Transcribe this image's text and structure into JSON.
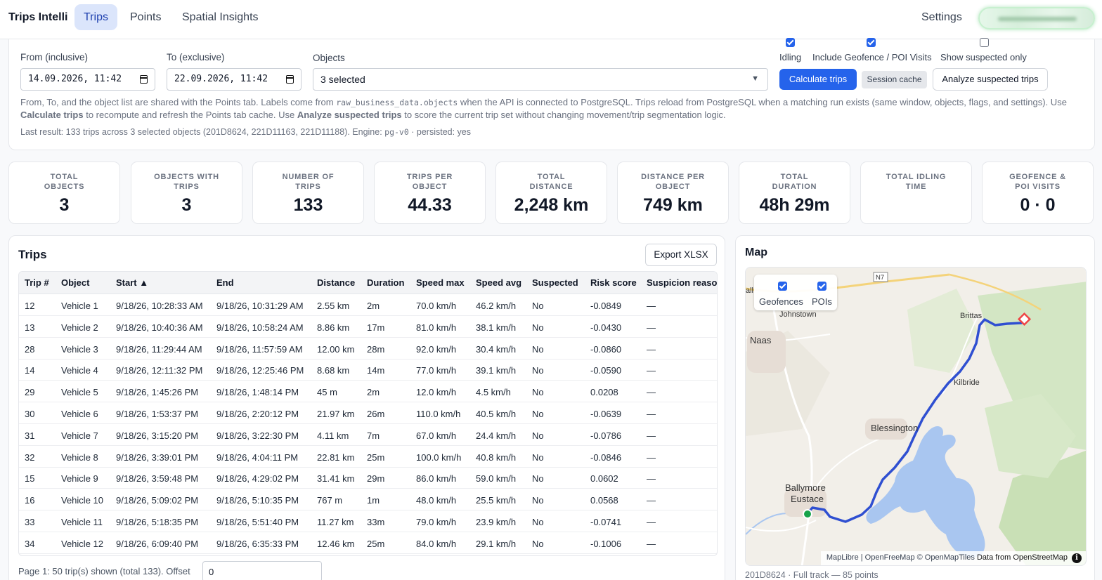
{
  "app": {
    "brand": "Trips Intelli"
  },
  "nav": {
    "tabs": [
      {
        "label": "Trips",
        "active": true
      },
      {
        "label": "Points",
        "active": false
      },
      {
        "label": "Spatial Insights",
        "active": false
      }
    ],
    "settings_label": "Settings"
  },
  "filters": {
    "from_label": "From (inclusive)",
    "from_value": "14.09.2026, 11:42",
    "to_label": "To (exclusive)",
    "to_value": "22.09.2026, 11:42",
    "objects_label": "Objects",
    "objects_value": "3 selected",
    "options": [
      {
        "label": "Idling",
        "checked": true
      },
      {
        "label": "Include Geofence / POI Visits",
        "checked": true
      },
      {
        "label": "Show suspected only",
        "checked": false
      }
    ],
    "calculate_label": "Calculate trips",
    "session_cache_label": "Session cache",
    "analyze_label": "Analyze suspected trips",
    "help": {
      "p1": "From, To, and the object list are shared with the Points tab. Labels come from ",
      "code": "raw_business_data.objects",
      "p2": " when the API is connected to PostgreSQL. Trips reload from PostgreSQL when a matching run exists (same window, objects, flags, and settings). Use ",
      "b1": "Calculate trips",
      "p3": " to recompute and refresh the Points tab cache. Use ",
      "b2": "Analyze suspected trips",
      "p4": " to score the current trip set without changing movement/trip segmentation logic."
    },
    "last_result": {
      "prefix": "Last result: 133 trips across 3 selected objects (201D8624, 221D11163, 221D11188). Engine: ",
      "engine": "pg-v0",
      "suffix": " · persisted: yes"
    }
  },
  "stats": [
    {
      "label_1": "TOTAL",
      "label_2": "OBJECTS",
      "value": "3"
    },
    {
      "label_1": "OBJECTS WITH",
      "label_2": "TRIPS",
      "value": "3"
    },
    {
      "label_1": "NUMBER OF",
      "label_2": "TRIPS",
      "value": "133"
    },
    {
      "label_1": "TRIPS PER",
      "label_2": "OBJECT",
      "value": "44.33"
    },
    {
      "label_1": "TOTAL",
      "label_2": "DISTANCE",
      "value": "2,248 km"
    },
    {
      "label_1": "DISTANCE PER",
      "label_2": "OBJECT",
      "value": "749 km"
    },
    {
      "label_1": "TOTAL",
      "label_2": "DURATION",
      "value": "48h 29m"
    },
    {
      "label_1": "TOTAL IDLING",
      "label_2": "TIME",
      "value": ""
    },
    {
      "label_1": "GEOFENCE &",
      "label_2": "POI VISITS",
      "value": "0 · 0"
    }
  ],
  "trips": {
    "title": "Trips",
    "export_label": "Export XLSX",
    "columns": [
      "Trip #",
      "Object",
      "Start ▲",
      "End",
      "Distance",
      "Duration",
      "Speed max",
      "Speed avg",
      "Suspected",
      "Risk score",
      "Suspicion reaso"
    ],
    "rows": [
      [
        "12",
        "Vehicle 1",
        "9/18/26, 10:28:33 AM",
        "9/18/26, 10:31:29 AM",
        "2.55 km",
        "2m",
        "70.0 km/h",
        "46.2 km/h",
        "No",
        "-0.0849",
        "—"
      ],
      [
        "13",
        "Vehicle 2",
        "9/18/26, 10:40:36 AM",
        "9/18/26, 10:58:24 AM",
        "8.86 km",
        "17m",
        "81.0 km/h",
        "38.1 km/h",
        "No",
        "-0.0430",
        "—"
      ],
      [
        "28",
        "Vehicle 3",
        "9/18/26, 11:29:44 AM",
        "9/18/26, 11:57:59 AM",
        "12.00 km",
        "28m",
        "92.0 km/h",
        "30.4 km/h",
        "No",
        "-0.0860",
        "—"
      ],
      [
        "14",
        "Vehicle 4",
        "9/18/26, 12:11:32 PM",
        "9/18/26, 12:25:46 PM",
        "8.68 km",
        "14m",
        "77.0 km/h",
        "39.1 km/h",
        "No",
        "-0.0590",
        "—"
      ],
      [
        "29",
        "Vehicle 5",
        "9/18/26, 1:45:26 PM",
        "9/18/26, 1:48:14 PM",
        "45 m",
        "2m",
        "12.0 km/h",
        "4.5 km/h",
        "No",
        "0.0208",
        "—"
      ],
      [
        "30",
        "Vehicle 6",
        "9/18/26, 1:53:37 PM",
        "9/18/26, 2:20:12 PM",
        "21.97 km",
        "26m",
        "110.0 km/h",
        "40.5 km/h",
        "No",
        "-0.0639",
        "—"
      ],
      [
        "31",
        "Vehicle 7",
        "9/18/26, 3:15:20 PM",
        "9/18/26, 3:22:30 PM",
        "4.11 km",
        "7m",
        "67.0 km/h",
        "24.4 km/h",
        "No",
        "-0.0786",
        "—"
      ],
      [
        "32",
        "Vehicle 8",
        "9/18/26, 3:39:01 PM",
        "9/18/26, 4:04:11 PM",
        "22.81 km",
        "25m",
        "100.0 km/h",
        "40.8 km/h",
        "No",
        "-0.0846",
        "—"
      ],
      [
        "15",
        "Vehicle 9",
        "9/18/26, 3:59:48 PM",
        "9/18/26, 4:29:02 PM",
        "31.41 km",
        "29m",
        "86.0 km/h",
        "59.0 km/h",
        "No",
        "0.0602",
        "—"
      ],
      [
        "16",
        "Vehicle 10",
        "9/18/26, 5:09:02 PM",
        "9/18/26, 5:10:35 PM",
        "767 m",
        "1m",
        "48.0 km/h",
        "25.5 km/h",
        "No",
        "0.0568",
        "—"
      ],
      [
        "33",
        "Vehicle 11",
        "9/18/26, 5:18:35 PM",
        "9/18/26, 5:51:40 PM",
        "11.27 km",
        "33m",
        "79.0 km/h",
        "23.9 km/h",
        "No",
        "-0.0741",
        "—"
      ],
      [
        "34",
        "Vehicle 12",
        "9/18/26, 6:09:40 PM",
        "9/18/26, 6:35:33 PM",
        "12.46 km",
        "25m",
        "84.0 km/h",
        "29.1 km/h",
        "No",
        "-0.1006",
        "—"
      ]
    ],
    "pager_text": "Page 1: 50 trip(s) shown (total 133). Offset",
    "offset_value": "0"
  },
  "map": {
    "title": "Map",
    "toggles": [
      {
        "label": "Geofences",
        "checked": true
      },
      {
        "label": "POIs",
        "checked": true
      }
    ],
    "places": [
      "Naas",
      "Johnstown",
      "Brittas",
      "Kilbride",
      "Blessington",
      "Ballymore",
      "Eustace",
      "N7",
      "all"
    ],
    "attribution": {
      "prefix": "MapLibre | OpenFreeMap © OpenMapTiles ",
      "bold": "Data from OpenStreetMap"
    },
    "caption": "201D8624 · Full track — 85 points",
    "colors": {
      "track": "#2f4fd1",
      "water": "#a9c6f0",
      "start_marker": "#16a34a",
      "end_marker": "#ef4444"
    }
  }
}
